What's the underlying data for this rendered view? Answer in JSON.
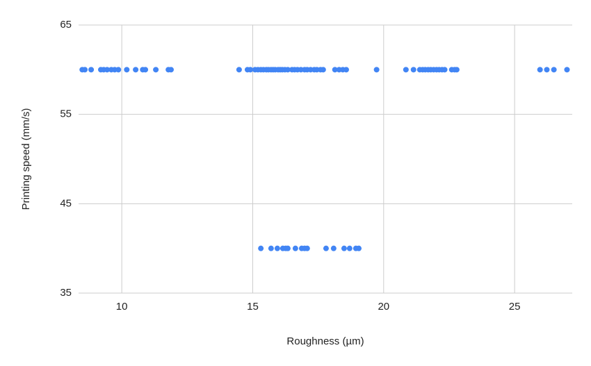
{
  "chart_data": {
    "type": "scatter",
    "x_label": "Roughness (µm)",
    "y_label": "Printing speed (mm/s)",
    "xlim": [
      8.35,
      27.2
    ],
    "xticks": [
      10,
      15,
      20,
      25
    ],
    "ylim": [
      35,
      65
    ],
    "yticks": [
      35,
      45,
      55,
      65
    ],
    "grid": true,
    "series": [
      {
        "color": "#4285f4",
        "x": [
          8.49,
          8.59,
          8.83,
          9.2,
          9.31,
          9.44,
          9.6,
          9.73,
          9.87,
          10.19,
          10.53,
          10.8,
          10.9,
          11.3,
          11.78,
          11.88,
          14.48,
          14.8,
          14.91,
          15.09,
          15.2,
          15.31,
          15.41,
          15.52,
          15.6,
          15.7,
          15.78,
          15.86,
          15.97,
          16.05,
          16.13,
          16.23,
          16.34,
          16.5,
          16.6,
          16.71,
          16.84,
          16.98,
          17.08,
          17.21,
          17.35,
          17.45,
          17.59,
          17.69,
          18.14,
          18.3,
          18.44,
          18.57,
          19.73,
          20.85,
          21.14,
          21.38,
          21.49,
          21.59,
          21.7,
          21.8,
          21.91,
          22.02,
          22.12,
          22.23,
          22.33,
          22.6,
          22.71,
          22.79,
          25.97,
          26.23,
          26.5,
          27.0,
          15.31,
          15.7,
          15.94,
          16.15,
          16.26,
          16.34,
          16.63,
          16.87,
          16.98,
          17.08,
          17.8,
          18.09,
          18.49,
          18.7,
          18.94,
          19.05
        ],
        "values": [
          60,
          60,
          60,
          60,
          60,
          60,
          60,
          60,
          60,
          60,
          60,
          60,
          60,
          60,
          60,
          60,
          60,
          60,
          60,
          60,
          60,
          60,
          60,
          60,
          60,
          60,
          60,
          60,
          60,
          60,
          60,
          60,
          60,
          60,
          60,
          60,
          60,
          60,
          60,
          60,
          60,
          60,
          60,
          60,
          60,
          60,
          60,
          60,
          60,
          60,
          60,
          60,
          60,
          60,
          60,
          60,
          60,
          60,
          60,
          60,
          60,
          60,
          60,
          60,
          60,
          60,
          60,
          60,
          40,
          40,
          40,
          40,
          40,
          40,
          40,
          40,
          40,
          40,
          40,
          40,
          40,
          40,
          40,
          40
        ]
      }
    ]
  }
}
